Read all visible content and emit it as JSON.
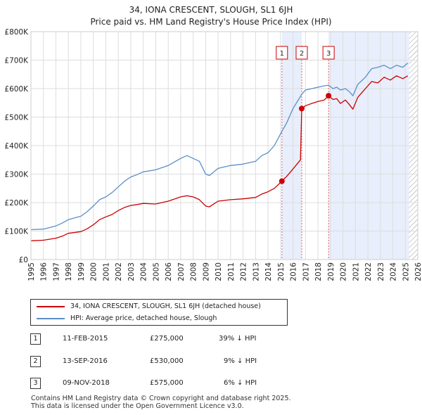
{
  "chart_data": {
    "type": "line",
    "title": "34, IONA CRESCENT, SLOUGH, SL1 6JH",
    "subtitle": "Price paid vs. HM Land Registry's House Price Index (HPI)",
    "ylim": [
      0,
      800000
    ],
    "xlim": [
      1995,
      2026
    ],
    "y_ticks": [
      0,
      100000,
      200000,
      300000,
      400000,
      500000,
      600000,
      700000,
      800000
    ],
    "y_tick_labels": [
      "£0",
      "£100K",
      "£200K",
      "£300K",
      "£400K",
      "£500K",
      "£600K",
      "£700K",
      "£800K"
    ],
    "x_ticks": [
      1995,
      1996,
      1997,
      1998,
      1999,
      2000,
      2001,
      2002,
      2003,
      2004,
      2005,
      2006,
      2007,
      2008,
      2009,
      2010,
      2011,
      2012,
      2013,
      2014,
      2015,
      2016,
      2017,
      2018,
      2019,
      2020,
      2021,
      2022,
      2023,
      2024,
      2025,
      2026
    ],
    "grid": true,
    "legend_position": "bottom",
    "series": [
      {
        "name": "34, IONA CRESCENT, SLOUGH, SL1 6JH (detached house)",
        "color": "#cc0000",
        "points": [
          [
            1995.0,
            66000
          ],
          [
            1996.0,
            68000
          ],
          [
            1997.0,
            75000
          ],
          [
            1997.5,
            82000
          ],
          [
            1998.0,
            92000
          ],
          [
            1999.0,
            98000
          ],
          [
            1999.5,
            108000
          ],
          [
            2000.0,
            122000
          ],
          [
            2000.5,
            140000
          ],
          [
            2001.0,
            150000
          ],
          [
            2001.5,
            158000
          ],
          [
            2002.0,
            172000
          ],
          [
            2002.5,
            183000
          ],
          [
            2003.0,
            190000
          ],
          [
            2003.5,
            193000
          ],
          [
            2004.0,
            197000
          ],
          [
            2005.0,
            195000
          ],
          [
            2006.0,
            205000
          ],
          [
            2007.0,
            220000
          ],
          [
            2007.5,
            224000
          ],
          [
            2008.0,
            220000
          ],
          [
            2008.5,
            210000
          ],
          [
            2009.0,
            188000
          ],
          [
            2009.3,
            185000
          ],
          [
            2010.0,
            205000
          ],
          [
            2011.0,
            210000
          ],
          [
            2012.0,
            213000
          ],
          [
            2013.0,
            218000
          ],
          [
            2013.5,
            230000
          ],
          [
            2014.0,
            238000
          ],
          [
            2014.5,
            250000
          ],
          [
            2015.11,
            275000
          ],
          [
            2015.5,
            292000
          ],
          [
            2016.0,
            318000
          ],
          [
            2016.6,
            350000
          ],
          [
            2016.7,
            530000
          ],
          [
            2017.0,
            540000
          ],
          [
            2017.5,
            548000
          ],
          [
            2018.0,
            555000
          ],
          [
            2018.5,
            560000
          ],
          [
            2018.85,
            575000
          ],
          [
            2019.2,
            562000
          ],
          [
            2019.5,
            565000
          ],
          [
            2019.8,
            548000
          ],
          [
            2020.2,
            560000
          ],
          [
            2020.5,
            545000
          ],
          [
            2020.8,
            528000
          ],
          [
            2021.2,
            570000
          ],
          [
            2021.8,
            600000
          ],
          [
            2022.3,
            625000
          ],
          [
            2022.8,
            620000
          ],
          [
            2023.3,
            640000
          ],
          [
            2023.8,
            630000
          ],
          [
            2024.3,
            645000
          ],
          [
            2024.8,
            635000
          ],
          [
            2025.2,
            645000
          ]
        ]
      },
      {
        "name": "HPI: Average price, detached house, Slough",
        "color": "#5b8ec7",
        "points": [
          [
            1995.0,
            105000
          ],
          [
            1996.0,
            107000
          ],
          [
            1997.0,
            118000
          ],
          [
            1997.5,
            128000
          ],
          [
            1998.0,
            140000
          ],
          [
            1999.0,
            152000
          ],
          [
            1999.5,
            168000
          ],
          [
            2000.0,
            188000
          ],
          [
            2000.5,
            210000
          ],
          [
            2001.0,
            220000
          ],
          [
            2001.5,
            235000
          ],
          [
            2002.0,
            255000
          ],
          [
            2002.5,
            275000
          ],
          [
            2003.0,
            290000
          ],
          [
            2003.5,
            298000
          ],
          [
            2004.0,
            308000
          ],
          [
            2005.0,
            315000
          ],
          [
            2006.0,
            330000
          ],
          [
            2007.0,
            355000
          ],
          [
            2007.5,
            365000
          ],
          [
            2008.0,
            355000
          ],
          [
            2008.5,
            345000
          ],
          [
            2009.0,
            300000
          ],
          [
            2009.3,
            295000
          ],
          [
            2010.0,
            320000
          ],
          [
            2011.0,
            330000
          ],
          [
            2012.0,
            335000
          ],
          [
            2013.0,
            345000
          ],
          [
            2013.5,
            365000
          ],
          [
            2014.0,
            375000
          ],
          [
            2014.5,
            400000
          ],
          [
            2015.11,
            450000
          ],
          [
            2015.5,
            480000
          ],
          [
            2016.0,
            530000
          ],
          [
            2016.7,
            580000
          ],
          [
            2017.0,
            595000
          ],
          [
            2017.5,
            600000
          ],
          [
            2018.0,
            605000
          ],
          [
            2018.5,
            610000
          ],
          [
            2018.85,
            612000
          ],
          [
            2019.2,
            600000
          ],
          [
            2019.5,
            605000
          ],
          [
            2019.8,
            595000
          ],
          [
            2020.2,
            600000
          ],
          [
            2020.5,
            590000
          ],
          [
            2020.8,
            575000
          ],
          [
            2021.2,
            615000
          ],
          [
            2021.8,
            640000
          ],
          [
            2022.3,
            670000
          ],
          [
            2022.8,
            675000
          ],
          [
            2023.3,
            682000
          ],
          [
            2023.8,
            670000
          ],
          [
            2024.3,
            682000
          ],
          [
            2024.8,
            675000
          ],
          [
            2025.2,
            690000
          ]
        ]
      }
    ],
    "sale_markers": [
      {
        "label": "1",
        "x": 2015.11,
        "y": 275000
      },
      {
        "label": "2",
        "x": 2016.7,
        "y": 530000
      },
      {
        "label": "3",
        "x": 2018.85,
        "y": 575000
      }
    ],
    "shaded_ranges": [
      [
        2015.11,
        2016.7
      ],
      [
        2018.85,
        2025.3
      ]
    ],
    "hatched_range": [
      2025.3,
      2026
    ]
  },
  "legend": {
    "property": "34, IONA CRESCENT, SLOUGH, SL1 6JH (detached house)",
    "hpi": "HPI: Average price, detached house, Slough"
  },
  "transactions": [
    {
      "num": "1",
      "date": "11-FEB-2015",
      "price": "£275,000",
      "hpi": "39% ↓ HPI"
    },
    {
      "num": "2",
      "date": "13-SEP-2016",
      "price": "£530,000",
      "hpi": "9% ↓ HPI"
    },
    {
      "num": "3",
      "date": "09-NOV-2018",
      "price": "£575,000",
      "hpi": "6% ↓ HPI"
    }
  ],
  "footer": {
    "line1": "Contains HM Land Registry data © Crown copyright and database right 2025.",
    "line2": "This data is licensed under the Open Government Licence v3.0."
  }
}
